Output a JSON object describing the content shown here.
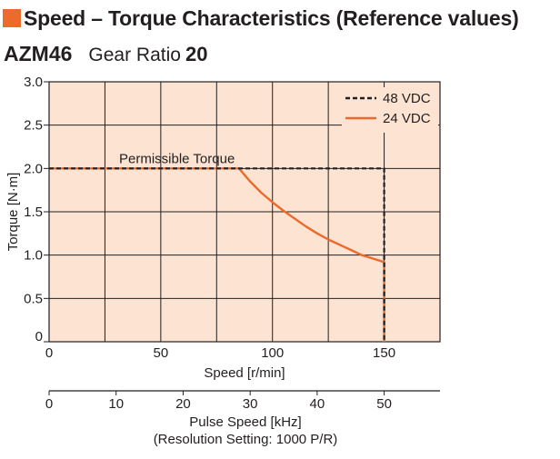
{
  "header": {
    "title": "Speed – Torque Characteristics (Reference values)",
    "model": "AZM46",
    "gear_label": "Gear Ratio",
    "gear_value": "20"
  },
  "colors": {
    "accent": "#ec6a2c",
    "plot_background": "#fce3d2",
    "grid": "#231f20",
    "series_48": "#231f20",
    "series_24": "#ec6a2c"
  },
  "chart_data": {
    "type": "line",
    "title": "Speed – Torque Characteristics (Reference values)",
    "xlabel": "Speed [r/min]",
    "ylabel": "Torque [N·m]",
    "xlim": [
      0,
      175
    ],
    "ylim": [
      0,
      3.0
    ],
    "xticks": [
      0,
      50,
      100,
      150
    ],
    "xtick_labels": [
      "0",
      "50",
      "100",
      "150"
    ],
    "yticks": [
      0,
      0.5,
      1.0,
      1.5,
      2.0,
      2.5,
      3.0
    ],
    "ytick_labels": [
      "0",
      "0.5",
      "1.0",
      "1.5",
      "2.0",
      "2.5",
      "3.0"
    ],
    "grid": true,
    "legend_position": "top-right",
    "annotation": "Permissible Torque",
    "secondary_axis": {
      "label": "Pulse Speed [kHz]",
      "note": "(Resolution Setting: 1000 P/R)",
      "range": [
        0,
        58.33
      ],
      "ticks": [
        0,
        10,
        20,
        30,
        40,
        50
      ],
      "tick_labels": [
        "0",
        "10",
        "20",
        "30",
        "40",
        "50"
      ]
    },
    "series": [
      {
        "name": "48 VDC",
        "style": "dashed",
        "color": "#231f20",
        "x": [
          0,
          150,
          150
        ],
        "y": [
          2.0,
          2.0,
          0
        ]
      },
      {
        "name": "24 VDC",
        "style": "solid",
        "color": "#ec6a2c",
        "x": [
          0,
          85,
          90,
          95,
          100,
          105,
          110,
          115,
          120,
          125,
          130,
          135,
          140,
          145,
          150,
          150
        ],
        "y": [
          2.0,
          2.0,
          1.85,
          1.72,
          1.61,
          1.51,
          1.42,
          1.33,
          1.25,
          1.18,
          1.12,
          1.06,
          1.0,
          0.96,
          0.92,
          0
        ]
      }
    ]
  }
}
